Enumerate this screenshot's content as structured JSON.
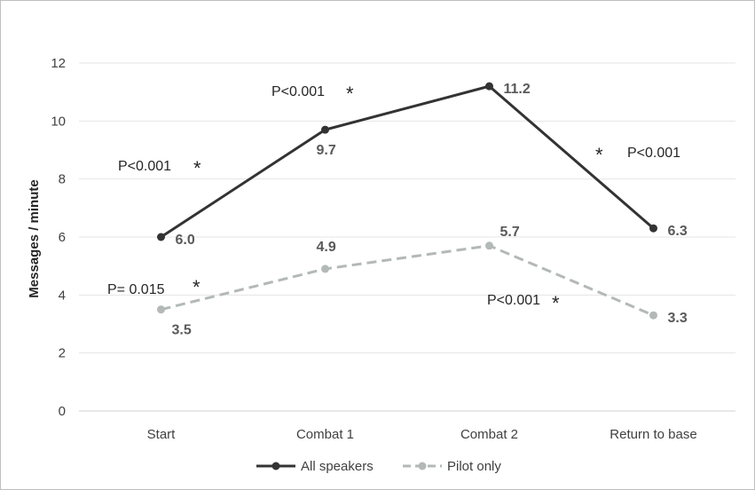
{
  "chart_data": {
    "type": "line",
    "categories": [
      "Start",
      "Combat 1",
      "Combat 2",
      "Return to base"
    ],
    "ylabel": "Messages / minute",
    "ylim": [
      0,
      12
    ],
    "yticks": [
      0,
      2,
      4,
      6,
      8,
      10,
      12
    ],
    "grid": true,
    "legend_position": "bottom",
    "series": [
      {
        "name": "All speakers",
        "values": [
          6.0,
          9.7,
          11.2,
          6.3
        ],
        "labels": [
          "6.0",
          "9.7",
          "11.2",
          "6.3"
        ],
        "color": "#333333",
        "style": "solid"
      },
      {
        "name": "Pilot only",
        "values": [
          3.5,
          4.9,
          5.7,
          3.3
        ],
        "labels": [
          "3.5",
          "4.9",
          "5.7",
          "3.3"
        ],
        "color": "#b3b9b6",
        "style": "dashed"
      }
    ],
    "annotations": {
      "star_symbol": "*",
      "all_speakers": [
        "P<0.001",
        "P<0.001",
        "P<0.001"
      ],
      "pilot_only": [
        "P= 0.015",
        "P<0.001"
      ]
    }
  }
}
